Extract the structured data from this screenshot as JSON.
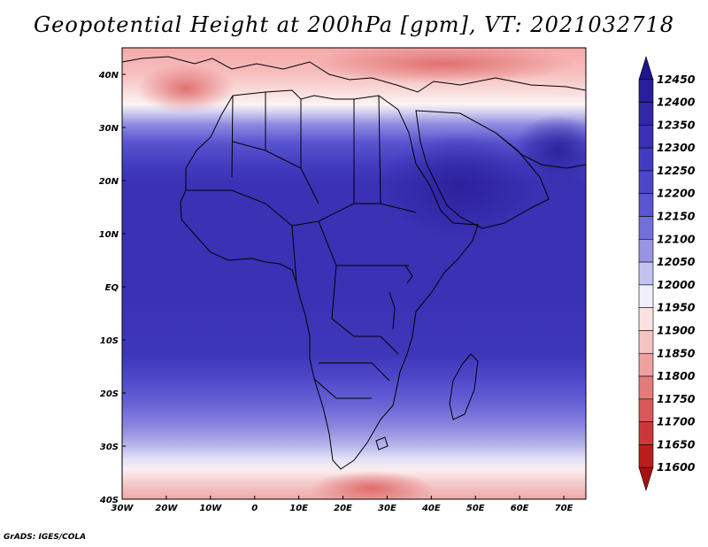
{
  "title": "Geopotential Height at 200hPa [gpm], VT: 2021032718",
  "footer": "GrADS: IGES/COLA",
  "map": {
    "lon_range": [
      -30,
      75
    ],
    "lat_range": [
      -40,
      45
    ],
    "lon_ticks": [
      {
        "value": -30,
        "label": "30W"
      },
      {
        "value": -20,
        "label": "20W"
      },
      {
        "value": -10,
        "label": "10W"
      },
      {
        "value": 0,
        "label": "0"
      },
      {
        "value": 10,
        "label": "10E"
      },
      {
        "value": 20,
        "label": "20E"
      },
      {
        "value": 30,
        "label": "30E"
      },
      {
        "value": 40,
        "label": "40E"
      },
      {
        "value": 50,
        "label": "50E"
      },
      {
        "value": 60,
        "label": "60E"
      },
      {
        "value": 70,
        "label": "70E"
      }
    ],
    "lat_ticks": [
      {
        "value": 40,
        "label": "40N"
      },
      {
        "value": 30,
        "label": "30N"
      },
      {
        "value": 20,
        "label": "20N"
      },
      {
        "value": 10,
        "label": "10N"
      },
      {
        "value": 0,
        "label": "EQ"
      },
      {
        "value": -10,
        "label": "10S"
      },
      {
        "value": -20,
        "label": "20S"
      },
      {
        "value": -30,
        "label": "30S"
      },
      {
        "value": -40,
        "label": "40S"
      }
    ]
  },
  "colorbar": {
    "levels": [
      12450,
      12400,
      12350,
      12300,
      12250,
      12200,
      12150,
      12100,
      12050,
      12000,
      11950,
      11900,
      11850,
      11800,
      11750,
      11700,
      11650,
      11600
    ],
    "colors": [
      "#1e148c",
      "#28209a",
      "#3128a6",
      "#3a31b4",
      "#443cc0",
      "#4d47c8",
      "#5a55d0",
      "#7470d9",
      "#9894e2",
      "#c4c2ef",
      "#f0effa",
      "#fbe1e1",
      "#f5c3c3",
      "#eda0a0",
      "#e37b7b",
      "#d85959",
      "#cc3838",
      "#bd1c1c",
      "#a51212"
    ]
  }
}
